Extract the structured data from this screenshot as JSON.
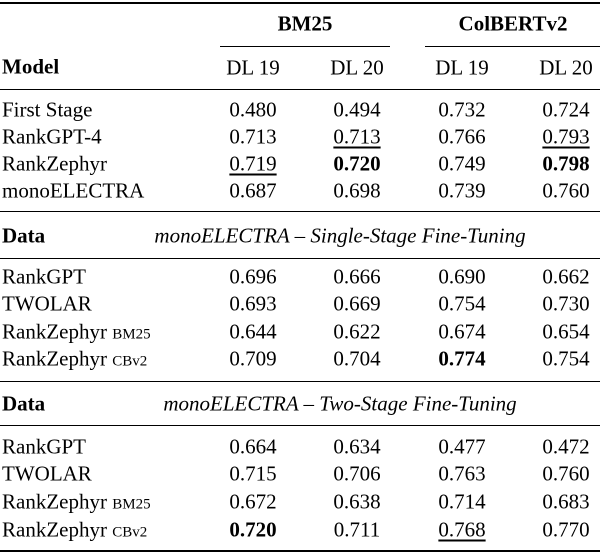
{
  "header": {
    "groups": [
      "BM25",
      "ColBERTv2"
    ],
    "columns": [
      "Model",
      "DL 19",
      "DL 20",
      "DL 19",
      "DL 20"
    ]
  },
  "sections": [
    {
      "rows": [
        {
          "model": "First Stage",
          "values": [
            "0.480",
            "0.494",
            "0.732",
            "0.724"
          ]
        },
        {
          "model": "RankGPT-4",
          "values": [
            "0.713",
            "0.713",
            "0.766",
            "0.793"
          ]
        },
        {
          "model": "RankZephyr",
          "values": [
            "0.719",
            "0.720",
            "0.749",
            "0.798"
          ]
        },
        {
          "model": "monoELECTRA",
          "values": [
            "0.687",
            "0.698",
            "0.739",
            "0.760"
          ]
        }
      ]
    },
    {
      "label": "Data",
      "title": "monoELECTRA – Single-Stage Fine-Tuning",
      "rows": [
        {
          "model": "RankGPT",
          "values": [
            "0.696",
            "0.666",
            "0.690",
            "0.662"
          ]
        },
        {
          "model": "TWOLAR",
          "values": [
            "0.693",
            "0.669",
            "0.754",
            "0.730"
          ]
        },
        {
          "model": "RankZephyr",
          "suffix": "BM25",
          "values": [
            "0.644",
            "0.622",
            "0.674",
            "0.654"
          ]
        },
        {
          "model": "RankZephyr",
          "suffix": "CBv2",
          "values": [
            "0.709",
            "0.704",
            "0.774",
            "0.754"
          ]
        }
      ]
    },
    {
      "label": "Data",
      "title": "monoELECTRA – Two-Stage Fine-Tuning",
      "rows": [
        {
          "model": "RankGPT",
          "values": [
            "0.664",
            "0.634",
            "0.477",
            "0.472"
          ]
        },
        {
          "model": "TWOLAR",
          "values": [
            "0.715",
            "0.706",
            "0.763",
            "0.760"
          ]
        },
        {
          "model": "RankZephyr",
          "suffix": "BM25",
          "values": [
            "0.672",
            "0.638",
            "0.714",
            "0.683"
          ]
        },
        {
          "model": "RankZephyr",
          "suffix": "CBv2",
          "values": [
            "0.720",
            "0.711",
            "0.768",
            "0.770"
          ]
        }
      ]
    }
  ]
}
